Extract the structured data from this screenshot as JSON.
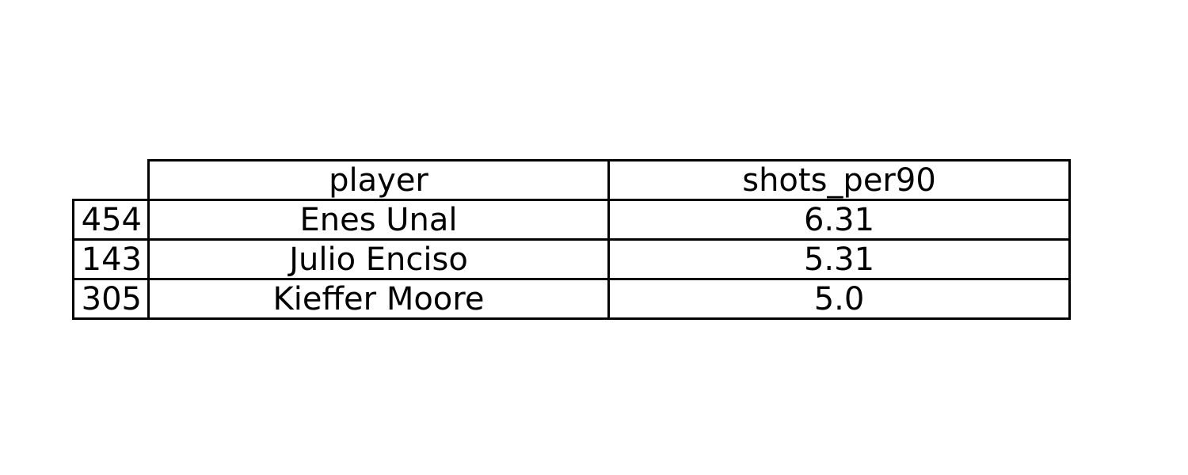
{
  "chart_data": {
    "type": "table",
    "columns": [
      "player",
      "shots_per90"
    ],
    "rows": [
      {
        "index": "454",
        "player": "Enes Unal",
        "shots_per90": "6.31"
      },
      {
        "index": "143",
        "player": "Julio Enciso",
        "shots_per90": "5.31"
      },
      {
        "index": "305",
        "player": "Kieffer Moore",
        "shots_per90": "5.0"
      }
    ]
  }
}
